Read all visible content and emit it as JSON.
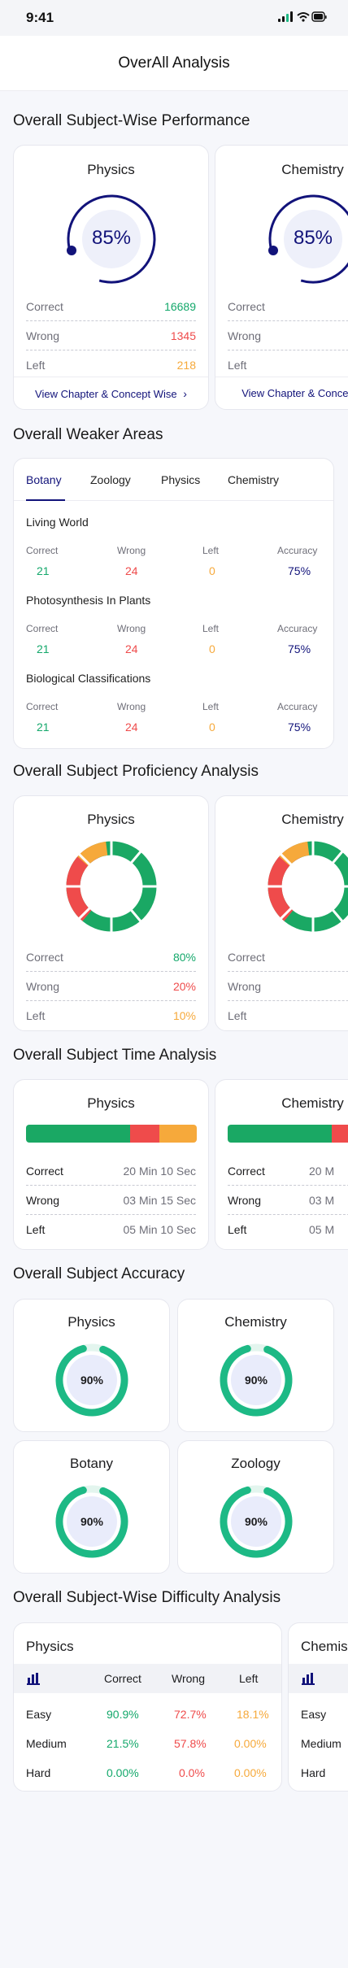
{
  "status_bar": {
    "time": "9:41"
  },
  "header": {
    "title": "OverAll Analysis"
  },
  "sections": {
    "performance": "Overall Subject-Wise Performance",
    "weaker": "Overall Weaker Areas",
    "proficiency": "Overall Subject Proficiency Analysis",
    "time": "Overall Subject Time Analysis",
    "accuracy": "Overall Subject Accuracy",
    "difficulty": "Overall Subject-Wise Difficulty Analysis"
  },
  "labels": {
    "correct": "Correct",
    "wrong": "Wrong",
    "left": "Left",
    "accuracy": "Accuracy",
    "easy": "Easy",
    "medium": "Medium",
    "hard": "Hard"
  },
  "performance": [
    {
      "subject": "Physics",
      "percent": "85%",
      "correct": "16689",
      "wrong": "1345",
      "left": "218",
      "link": "View Chapter & Concept Wise"
    },
    {
      "subject": "Chemistry",
      "percent": "85%",
      "link": "View Chapter & Concept Wise"
    }
  ],
  "weaker": {
    "tabs": [
      "Botany",
      "Zoology",
      "Physics",
      "Chemistry"
    ],
    "active_tab": "Botany",
    "items": [
      {
        "name": "Living World",
        "correct": "21",
        "wrong": "24",
        "left": "0",
        "accuracy": "75%"
      },
      {
        "name": "Photosynthesis In Plants",
        "correct": "21",
        "wrong": "24",
        "left": "0",
        "accuracy": "75%"
      },
      {
        "name": "Biological Classifications",
        "correct": "21",
        "wrong": "24",
        "left": "0",
        "accuracy": "75%"
      }
    ]
  },
  "proficiency": [
    {
      "subject": "Physics",
      "correct": "80%",
      "wrong": "20%",
      "left": "10%"
    },
    {
      "subject": "Chemistry"
    }
  ],
  "time": [
    {
      "subject": "Physics",
      "correct": "20 Min 10 Sec",
      "wrong": "03 Min 15 Sec",
      "left": "05 Min 10 Sec",
      "bar_fractions": {
        "correct": 0.61,
        "wrong": 0.17,
        "left": 0.22
      }
    },
    {
      "subject": "Chemistry",
      "correct": "20 M",
      "wrong": "03 M",
      "left": "05 M"
    }
  ],
  "accuracy": [
    {
      "subject": "Physics",
      "value": "90%",
      "fraction": 0.9
    },
    {
      "subject": "Chemistry",
      "value": "90%",
      "fraction": 0.9
    },
    {
      "subject": "Botany",
      "value": "90%",
      "fraction": 0.9
    },
    {
      "subject": "Zoology",
      "value": "90%",
      "fraction": 0.9
    }
  ],
  "difficulty": {
    "cards": [
      {
        "subject": "Physics",
        "columns": [
          "Correct",
          "Wrong",
          "Left"
        ],
        "rows": [
          {
            "level": "Easy",
            "correct": "90.9%",
            "wrong": "72.7%",
            "left": "18.1%"
          },
          {
            "level": "Medium",
            "correct": "21.5%",
            "wrong": "57.8%",
            "left": "0.00%"
          },
          {
            "level": "Hard",
            "correct": "0.00%",
            "wrong": "0.0%",
            "left": "0.00%"
          }
        ]
      },
      {
        "subject": "Chemis",
        "rows": [
          {
            "level": "Easy"
          },
          {
            "level": "Medium"
          },
          {
            "level": "Hard"
          }
        ]
      }
    ]
  },
  "colors": {
    "navy": "#12137a",
    "green": "#14a86b",
    "red": "#ef4b4b",
    "orange": "#f6a93b",
    "accuracy_ring": "#1db985"
  }
}
